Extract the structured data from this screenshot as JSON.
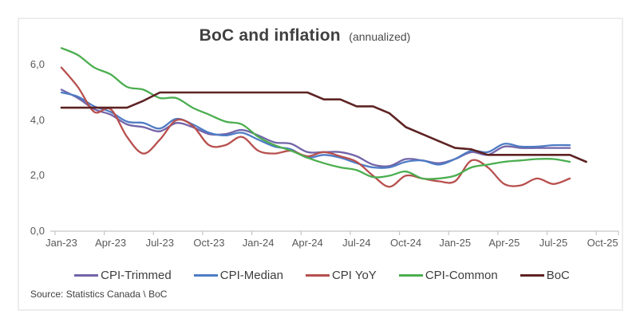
{
  "figure": {
    "title": "BoC and inflation",
    "title_suffix": "(annualized)",
    "source": "Source: Statistics Canada \\ BoC"
  },
  "chart_data": {
    "type": "line",
    "title": "BoC and inflation (annualized)",
    "xlabel": "",
    "ylabel": "",
    "ylim": [
      0,
      7
    ],
    "grid": false,
    "legend_position": "bottom",
    "x_tick_labels": [
      "Jan-23",
      "Apr-23",
      "Jul-23",
      "Oct-23",
      "Jan-24",
      "Apr-24",
      "Jul-24",
      "Oct-24",
      "Jan-25",
      "Apr-25",
      "Jul-25",
      "Oct-25"
    ],
    "y_tick_labels": [
      "0,0",
      "2,0",
      "4,0",
      "6,0"
    ],
    "y_tick_values": [
      0,
      2,
      4,
      6
    ],
    "x_months": [
      "Jan-23",
      "Feb-23",
      "Mar-23",
      "Apr-23",
      "May-23",
      "Jun-23",
      "Jul-23",
      "Aug-23",
      "Sep-23",
      "Oct-23",
      "Nov-23",
      "Dec-23",
      "Jan-24",
      "Feb-24",
      "Mar-24",
      "Apr-24",
      "May-24",
      "Jun-24",
      "Jul-24",
      "Aug-24",
      "Sep-24",
      "Oct-24",
      "Nov-24",
      "Dec-24",
      "Jan-25",
      "Feb-25",
      "Mar-25",
      "Apr-25",
      "May-25",
      "Jun-25",
      "Jul-25",
      "Aug-25",
      "Sep-25"
    ],
    "series": [
      {
        "name": "CPI-Trimmed",
        "color": "#7264a8",
        "smooth": true,
        "values": [
          5.1,
          4.8,
          4.4,
          4.2,
          3.85,
          3.75,
          3.6,
          3.9,
          3.75,
          3.5,
          3.5,
          3.65,
          3.45,
          3.2,
          3.15,
          2.85,
          2.85,
          2.85,
          2.7,
          2.4,
          2.35,
          2.6,
          2.55,
          2.45,
          2.6,
          2.85,
          2.75,
          3.05,
          3.0,
          3.0,
          3.0,
          3.0
        ]
      },
      {
        "name": "CPI-Median",
        "color": "#4e7cc5",
        "smooth": true,
        "values": [
          5.0,
          4.85,
          4.5,
          4.3,
          3.95,
          3.9,
          3.7,
          4.05,
          3.85,
          3.55,
          3.45,
          3.55,
          3.3,
          3.05,
          2.95,
          2.65,
          2.75,
          2.65,
          2.45,
          2.3,
          2.3,
          2.5,
          2.55,
          2.4,
          2.6,
          2.9,
          2.85,
          3.15,
          3.05,
          3.05,
          3.1,
          3.1
        ]
      },
      {
        "name": "CPI YoY",
        "color": "#b7504e",
        "smooth": true,
        "values": [
          5.9,
          5.2,
          4.3,
          4.4,
          3.4,
          2.8,
          3.3,
          4.0,
          3.8,
          3.1,
          3.1,
          3.4,
          2.9,
          2.8,
          2.9,
          2.7,
          2.85,
          2.7,
          2.5,
          2.0,
          1.6,
          2.0,
          1.9,
          1.8,
          1.8,
          2.55,
          2.3,
          1.7,
          1.65,
          1.9,
          1.7,
          1.9
        ]
      },
      {
        "name": "CPI-Common",
        "color": "#4bae4f",
        "smooth": true,
        "values": [
          6.6,
          6.35,
          5.9,
          5.65,
          5.2,
          5.1,
          4.8,
          4.8,
          4.45,
          4.2,
          3.95,
          3.85,
          3.4,
          3.1,
          2.9,
          2.65,
          2.45,
          2.3,
          2.2,
          1.95,
          2.0,
          2.15,
          1.9,
          1.9,
          2.0,
          2.3,
          2.4,
          2.5,
          2.55,
          2.6,
          2.6,
          2.5
        ]
      },
      {
        "name": "BoC",
        "color": "#5e2323",
        "smooth": false,
        "values": [
          4.45,
          4.45,
          4.45,
          4.45,
          4.45,
          4.7,
          5.0,
          5.0,
          5.0,
          5.0,
          5.0,
          5.0,
          5.0,
          5.0,
          5.0,
          5.0,
          4.75,
          4.75,
          4.5,
          4.5,
          4.25,
          3.75,
          3.5,
          3.25,
          3.0,
          2.95,
          2.75,
          2.75,
          2.75,
          2.75,
          2.75,
          2.75,
          2.5
        ]
      }
    ]
  }
}
